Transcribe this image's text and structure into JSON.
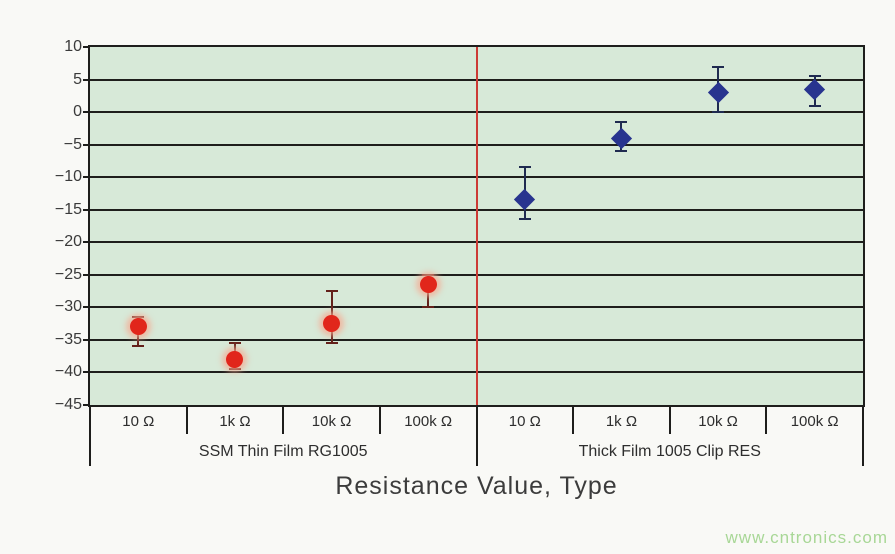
{
  "page": {
    "watermark": "www.cntronics.com"
  },
  "chart_data": {
    "type": "scatter",
    "title": "",
    "xlabel": "Resistance Value, Type",
    "ylabel": "",
    "ylim": [
      -45,
      10
    ],
    "yticks": [
      10,
      5,
      0,
      -5,
      -10,
      -15,
      -20,
      -25,
      -30,
      -35,
      -40,
      -45
    ],
    "grid": true,
    "legend_position": "none",
    "categories": [
      "10 Ω",
      "1k Ω",
      "10k Ω",
      "100k Ω",
      "10 Ω",
      "1k Ω",
      "10k Ω",
      "100k Ω"
    ],
    "groups": [
      {
        "label": "SSM Thin Film RG1005",
        "span": 4
      },
      {
        "label": "Thick Film 1005 Clip RES",
        "span": 4
      }
    ],
    "divider_after_category": 4,
    "series": [
      {
        "name": "SSM Thin Film RG1005",
        "marker": "circle",
        "color": "#e1261b",
        "error_color": "#63201a",
        "points": [
          {
            "x": 0,
            "category": "10 Ω",
            "y": -33,
            "hi": -31.5,
            "lo": -36
          },
          {
            "x": 1,
            "category": "1k Ω",
            "y": -38,
            "hi": -35.5,
            "lo": -39.5
          },
          {
            "x": 2,
            "category": "10k Ω",
            "y": -32.5,
            "hi": -27.5,
            "lo": -35.5
          },
          {
            "x": 3,
            "category": "100k Ω",
            "y": -26.5,
            "hi": -25,
            "lo": -30
          }
        ]
      },
      {
        "name": "Thick Film 1005 Clip RES",
        "marker": "diamond",
        "color": "#28348f",
        "error_color": "#1f2a50",
        "points": [
          {
            "x": 4,
            "category": "10 Ω",
            "y": -13.5,
            "hi": -8.5,
            "lo": -16.5
          },
          {
            "x": 5,
            "category": "1k Ω",
            "y": -4,
            "hi": -1.5,
            "lo": -6
          },
          {
            "x": 6,
            "category": "10k Ω",
            "y": 3,
            "hi": 7,
            "lo": 0
          },
          {
            "x": 7,
            "category": "100k Ω",
            "y": 3.5,
            "hi": 5.5,
            "lo": 1
          }
        ]
      }
    ],
    "colors": {
      "plot_bg": "#d7e9d8",
      "grid": "#1e1e1c",
      "divider": "#cc3a35",
      "text": "#3a3a3a",
      "watermark": "#a8d796"
    }
  }
}
